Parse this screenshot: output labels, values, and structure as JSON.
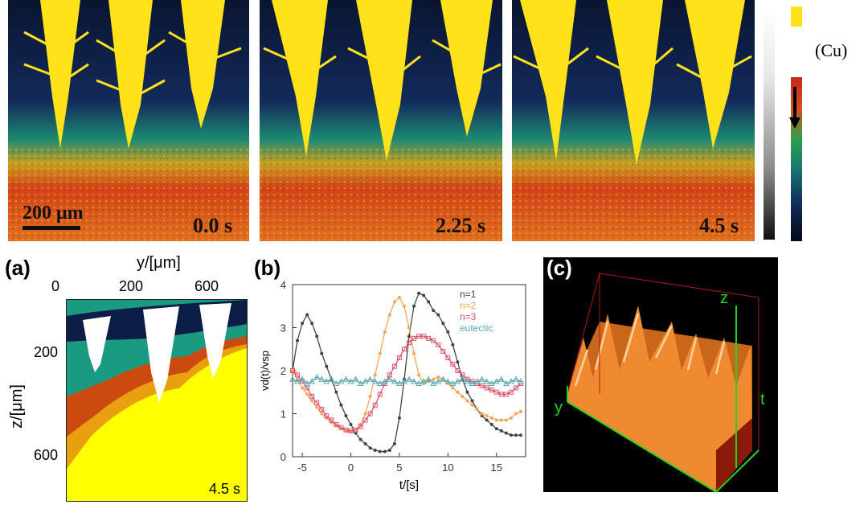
{
  "top_row": {
    "frames": [
      {
        "time": "0.0 s"
      },
      {
        "time": "2.25 s"
      },
      {
        "time": "4.5 s"
      }
    ],
    "scale_bar": "200 μm",
    "colorbar_label": "(Cu)",
    "colors": {
      "dendrite": "#ffe21a",
      "liquid_dark": "#0c1a3c",
      "mushy": "#1e8a72",
      "solid": "#d2431a"
    }
  },
  "panel_a": {
    "letter": "(a)",
    "x_axis_label": "y/[μm]",
    "x_ticks": [
      "0",
      "200",
      "600"
    ],
    "y_axis_label": "z/[μm]",
    "y_ticks": [
      "200",
      "600"
    ],
    "time": "4.5 s"
  },
  "panel_b": {
    "letter": "(b)",
    "legend": [
      {
        "label": "n=1",
        "color": "#444444"
      },
      {
        "label": "n=2",
        "color": "#f5a55a"
      },
      {
        "label": "n=3",
        "color": "#d9546a"
      },
      {
        "label": "eutectic",
        "color": "#5aa8b4"
      }
    ]
  },
  "chart_data": {
    "type": "line",
    "title": "",
    "xlabel": "t/[s]",
    "ylabel": "vd(t)/vsp",
    "xlim": [
      -6,
      18
    ],
    "ylim": [
      0,
      4
    ],
    "xticks": [
      -5,
      0,
      5,
      10,
      15
    ],
    "yticks": [
      0,
      1,
      2,
      3,
      4
    ],
    "series": [
      {
        "name": "n=1",
        "color": "#444444",
        "marker": "circle",
        "x": [
          -6,
          -5.5,
          -5,
          -4.5,
          -4,
          -3.5,
          -3,
          -2.5,
          -2,
          -1.5,
          -1,
          -0.5,
          0,
          0.5,
          1,
          1.5,
          2,
          2.5,
          3,
          3.5,
          4,
          4.5,
          5,
          5.5,
          6,
          6.5,
          7,
          7.5,
          8,
          8.5,
          9,
          9.5,
          10,
          10.5,
          11,
          11.5,
          12,
          12.5,
          13,
          13.5,
          14,
          14.5,
          15,
          15.5,
          16,
          16.5,
          17,
          17.5
        ],
        "y": [
          2.0,
          2.7,
          3.1,
          3.3,
          3.1,
          2.8,
          2.4,
          2.1,
          1.8,
          1.5,
          1.2,
          0.95,
          0.75,
          0.55,
          0.4,
          0.3,
          0.2,
          0.15,
          0.12,
          0.12,
          0.15,
          0.3,
          0.9,
          1.8,
          2.8,
          3.5,
          3.8,
          3.75,
          3.6,
          3.4,
          3.3,
          3.1,
          2.9,
          2.6,
          2.2,
          1.8,
          1.5,
          1.3,
          1.1,
          0.95,
          0.85,
          0.75,
          0.65,
          0.6,
          0.55,
          0.5,
          0.5,
          0.5
        ]
      },
      {
        "name": "n=2",
        "color": "#f5a55a",
        "marker": "circle",
        "x": [
          -6,
          -5.5,
          -5,
          -4.5,
          -4,
          -3.5,
          -3,
          -2.5,
          -2,
          -1.5,
          -1,
          -0.5,
          0,
          0.5,
          1,
          1.5,
          2,
          2.5,
          3,
          3.5,
          4,
          4.5,
          5,
          5.5,
          6,
          6.5,
          7,
          7.5,
          8,
          8.5,
          9,
          9.5,
          10,
          10.5,
          11,
          11.5,
          12,
          12.5,
          13,
          13.5,
          14,
          14.5,
          15,
          15.5,
          16,
          16.5,
          17,
          17.5
        ],
        "y": [
          2.0,
          1.8,
          1.6,
          1.45,
          1.3,
          1.15,
          1.0,
          0.9,
          0.8,
          0.72,
          0.65,
          0.6,
          0.58,
          0.6,
          0.75,
          1.0,
          1.4,
          1.9,
          2.4,
          2.9,
          3.3,
          3.6,
          3.7,
          3.5,
          3.0,
          2.4,
          1.9,
          1.7,
          1.75,
          1.8,
          1.85,
          1.8,
          1.7,
          1.6,
          1.5,
          1.4,
          1.3,
          1.2,
          1.1,
          1.0,
          0.95,
          0.9,
          0.85,
          0.85,
          0.85,
          0.9,
          1.0,
          1.05
        ]
      },
      {
        "name": "n=3",
        "color": "#d9546a",
        "marker": "square",
        "x": [
          -6,
          -5.5,
          -5,
          -4.5,
          -4,
          -3.5,
          -3,
          -2.5,
          -2,
          -1.5,
          -1,
          -0.5,
          0,
          0.5,
          1,
          1.5,
          2,
          2.5,
          3,
          3.5,
          4,
          4.5,
          5,
          5.5,
          6,
          6.5,
          7,
          7.5,
          8,
          8.5,
          9,
          9.5,
          10,
          10.5,
          11,
          11.5,
          12,
          12.5,
          13,
          13.5,
          14,
          14.5,
          15,
          15.5,
          16,
          16.5,
          17,
          17.5
        ],
        "y": [
          2.0,
          1.9,
          1.75,
          1.6,
          1.4,
          1.25,
          1.1,
          0.95,
          0.85,
          0.75,
          0.68,
          0.62,
          0.6,
          0.62,
          0.7,
          0.85,
          1.0,
          1.2,
          1.45,
          1.7,
          1.9,
          2.1,
          2.3,
          2.5,
          2.65,
          2.75,
          2.8,
          2.8,
          2.75,
          2.7,
          2.6,
          2.45,
          2.3,
          2.15,
          2.0,
          1.9,
          1.8,
          1.75,
          1.7,
          1.65,
          1.6,
          1.55,
          1.5,
          1.45,
          1.45,
          1.5,
          1.6,
          1.7
        ]
      },
      {
        "name": "eutectic",
        "color": "#5aa8b4",
        "marker": "triangle",
        "x": [
          -6,
          -5.5,
          -5,
          -4.5,
          -4,
          -3.5,
          -3,
          -2.5,
          -2,
          -1.5,
          -1,
          -0.5,
          0,
          0.5,
          1,
          1.5,
          2,
          2.5,
          3,
          3.5,
          4,
          4.5,
          5,
          5.5,
          6,
          6.5,
          7,
          7.5,
          8,
          8.5,
          9,
          9.5,
          10,
          10.5,
          11,
          11.5,
          12,
          12.5,
          13,
          13.5,
          14,
          14.5,
          15,
          15.5,
          16,
          16.5,
          17,
          17.5
        ],
        "y": [
          1.8,
          1.75,
          1.8,
          1.7,
          1.75,
          1.85,
          1.8,
          1.75,
          1.8,
          1.7,
          1.75,
          1.8,
          1.75,
          1.8,
          1.7,
          1.75,
          1.8,
          1.75,
          1.7,
          1.75,
          1.8,
          1.75,
          1.7,
          1.75,
          1.8,
          1.75,
          1.7,
          1.75,
          1.8,
          1.7,
          1.75,
          1.8,
          1.75,
          1.7,
          1.75,
          1.8,
          1.75,
          1.7,
          1.75,
          1.8,
          1.75,
          1.7,
          1.75,
          1.8,
          1.7,
          1.75,
          1.8,
          1.75
        ]
      }
    ]
  },
  "panel_c": {
    "letter": "(c)",
    "axes": {
      "z": "z",
      "y": "y",
      "t": "t"
    }
  }
}
